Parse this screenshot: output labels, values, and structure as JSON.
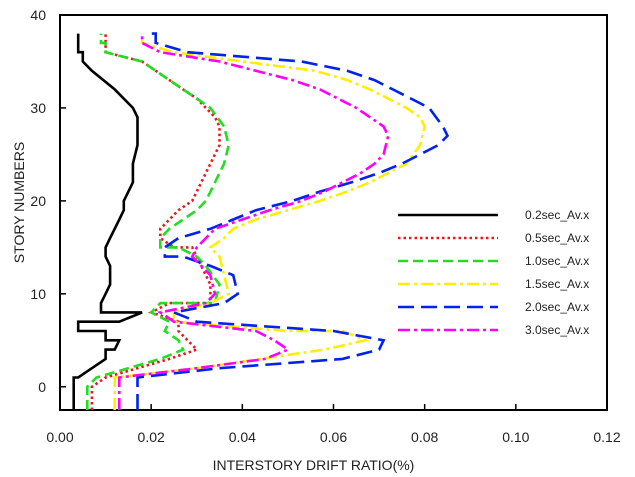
{
  "chart_data": {
    "type": "line",
    "title": "",
    "xlabel": "INTERSTORY DRIFT RATIO(%)",
    "ylabel": "STORY NUMBERS",
    "xlim": [
      0,
      0.12
    ],
    "ylim": [
      -2.5,
      40
    ],
    "xticks": [
      0,
      0.02,
      0.04,
      0.06,
      0.08,
      0.1,
      0.12
    ],
    "xtick_labels": [
      "0.00",
      "0.02",
      "0.04",
      "0.06",
      "0.08",
      "0.10",
      "0.12"
    ],
    "yticks": [
      0,
      10,
      20,
      30,
      40
    ],
    "ytick_labels": [
      "0",
      "10",
      "20",
      "30",
      "40"
    ],
    "grid": false,
    "legend": "right",
    "series": [
      {
        "name": "0.2sec_Av.x",
        "color": "#000000",
        "dash": "solid",
        "x": [
          0.003,
          0.003,
          0.004,
          0.007,
          0.01,
          0.01,
          0.012,
          0.013,
          0.01,
          0.01,
          0.004,
          0.004,
          0.008,
          0.013,
          0.018,
          0.009,
          0.009,
          0.01,
          0.011,
          0.011,
          0.01,
          0.01,
          0.011,
          0.012,
          0.013,
          0.014,
          0.014,
          0.015,
          0.016,
          0.016,
          0.017,
          0.017,
          0.017,
          0.016,
          0.014,
          0.012,
          0.007,
          0.005,
          0.005,
          0.004,
          0.004
        ],
        "y": [
          -2.5,
          1,
          1,
          2,
          3,
          4,
          4,
          5,
          5,
          6,
          6,
          7,
          7,
          7,
          8,
          8,
          9,
          10,
          11,
          13,
          14,
          15,
          16,
          17,
          18,
          19,
          20,
          21,
          22,
          24,
          26,
          28,
          29,
          30,
          31,
          32,
          34,
          35,
          36,
          36,
          38
        ]
      },
      {
        "name": "0.5sec_Av.x",
        "color": "#e41a1c",
        "dash": "dotted",
        "x": [
          0.007,
          0.007,
          0.01,
          0.024,
          0.03,
          0.028,
          0.026,
          0.026,
          0.02,
          0.024,
          0.033,
          0.033,
          0.031,
          0.029,
          0.025,
          0.022,
          0.022,
          0.024,
          0.026,
          0.029,
          0.031,
          0.033,
          0.035,
          0.035,
          0.034,
          0.032,
          0.03,
          0.027,
          0.024,
          0.018,
          0.01,
          0.01
        ],
        "y": [
          -2.5,
          0,
          1,
          3,
          4,
          5,
          6,
          7,
          8,
          9,
          9,
          11,
          13,
          15,
          15,
          16,
          17,
          18,
          19,
          20,
          22,
          24,
          26,
          28,
          29,
          30,
          31,
          32,
          33,
          35,
          36,
          38
        ]
      },
      {
        "name": "1.0sec_Av.x",
        "color": "#22dd22",
        "dash": "dashed",
        "x": [
          0.006,
          0.006,
          0.008,
          0.022,
          0.027,
          0.026,
          0.023,
          0.024,
          0.02,
          0.022,
          0.034,
          0.035,
          0.032,
          0.03,
          0.026,
          0.022,
          0.022,
          0.024,
          0.027,
          0.03,
          0.032,
          0.034,
          0.036,
          0.037,
          0.036,
          0.033,
          0.03,
          0.027,
          0.024,
          0.018,
          0.01,
          0.01,
          0.009,
          0.009
        ],
        "y": [
          -2.5,
          0,
          1,
          3,
          4,
          5,
          6,
          7,
          8,
          9,
          9,
          11,
          13,
          14,
          15,
          15,
          16,
          17,
          18,
          19,
          20,
          22,
          24,
          26,
          28,
          30,
          31,
          32,
          33,
          35,
          36,
          37,
          37,
          38
        ]
      },
      {
        "name": "1.5sec_Av.x",
        "color": "#ffee00",
        "dash": "dashdot",
        "x": [
          0.012,
          0.012,
          0.03,
          0.058,
          0.067,
          0.062,
          0.05,
          0.025,
          0.025,
          0.033,
          0.037,
          0.036,
          0.035,
          0.033,
          0.036,
          0.038,
          0.043,
          0.05,
          0.057,
          0.063,
          0.068,
          0.072,
          0.076,
          0.079,
          0.08,
          0.079,
          0.076,
          0.072,
          0.068,
          0.063,
          0.056,
          0.04,
          0.025,
          0.018,
          0.018
        ],
        "y": [
          -2.5,
          1,
          2,
          4,
          5,
          6,
          6,
          7,
          8,
          9,
          10,
          12,
          14,
          15,
          16,
          17,
          18,
          19,
          20,
          21,
          22,
          23,
          24,
          26,
          28,
          29,
          30,
          31,
          32,
          33,
          34,
          35,
          36,
          37,
          38
        ]
      },
      {
        "name": "2.0sec_Av.x",
        "color": "#0022ee",
        "dash": "longdash",
        "x": [
          0.017,
          0.017,
          0.035,
          0.062,
          0.07,
          0.071,
          0.06,
          0.03,
          0.025,
          0.036,
          0.039,
          0.038,
          0.033,
          0.027,
          0.023,
          0.023,
          0.026,
          0.033,
          0.038,
          0.043,
          0.051,
          0.057,
          0.064,
          0.07,
          0.075,
          0.079,
          0.083,
          0.085,
          0.084,
          0.081,
          0.077,
          0.073,
          0.069,
          0.063,
          0.053,
          0.028,
          0.021,
          0.021,
          0.02
        ],
        "y": [
          -2.5,
          1,
          2,
          3,
          4,
          5,
          6,
          7,
          8,
          9,
          10,
          12,
          13,
          14,
          14,
          15,
          16,
          17,
          18,
          19,
          20,
          21,
          22,
          23,
          24,
          25,
          26,
          27,
          28,
          30,
          31,
          32,
          33,
          34,
          35,
          36,
          37,
          38,
          38
        ]
      },
      {
        "name": "3.0sec_Av.x",
        "color": "#ff00ff",
        "dash": "dashdot",
        "x": [
          0.013,
          0.013,
          0.03,
          0.045,
          0.05,
          0.047,
          0.043,
          0.025,
          0.022,
          0.032,
          0.034,
          0.033,
          0.031,
          0.029,
          0.03,
          0.032,
          0.034,
          0.04,
          0.046,
          0.053,
          0.058,
          0.062,
          0.066,
          0.069,
          0.071,
          0.072,
          0.071,
          0.068,
          0.065,
          0.061,
          0.057,
          0.051,
          0.035,
          0.022,
          0.018,
          0.018
        ],
        "y": [
          -2.5,
          1,
          2,
          3,
          4,
          5,
          6,
          7,
          8,
          9,
          10,
          12,
          13,
          14,
          15,
          16,
          17,
          18,
          19,
          20,
          21,
          22,
          23,
          24,
          25,
          27,
          28,
          29,
          30,
          31,
          32,
          33,
          35,
          36,
          37,
          38
        ]
      }
    ]
  }
}
